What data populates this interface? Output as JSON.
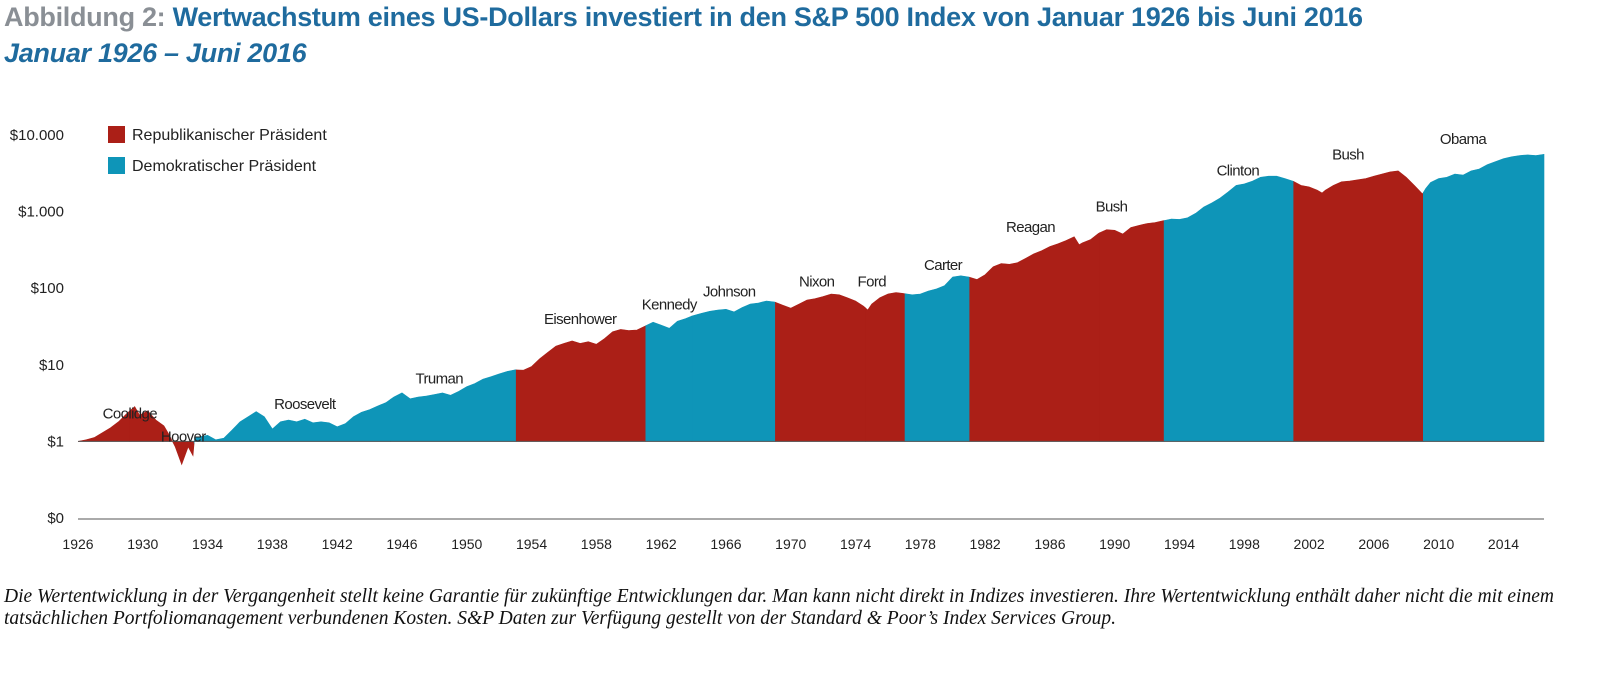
{
  "header": {
    "prefix": "Abbildung 2:",
    "title": "Wertwachstum eines US-Dollars investiert in den S&P 500 Index von Januar 1926 bis Juni 2016",
    "subtitle": "Januar 1926 – Juni 2016"
  },
  "footnote": "Die Wertentwicklung in der Vergangenheit stellt keine Garantie für zukünftige Entwicklungen dar. Man kann nicht direkt in Indizes investieren. Ihre Wertentwicklung enthält daher nicht die mit einem tatsächlichen Portfoliomanagement verbundenen Kosten. S&P Daten zur Verfügung gestellt von der Standard & Poor’s Index Services Group.",
  "colors": {
    "republican": "#ab1f17",
    "democrat": "#0e95b8",
    "title": "#1f6b9e",
    "title_prefix": "#8a8f95"
  },
  "chart_data": {
    "type": "area",
    "title": "Wertwachstum eines US-Dollars investiert in den S&P 500 Index von Januar 1926 bis Juni 2016",
    "subtitle": "Januar 1926 – Juni 2016",
    "xlabel": "",
    "ylabel": "",
    "y_scale": "log",
    "xlim": [
      1926,
      2016.5
    ],
    "ylim": [
      0.1,
      10000
    ],
    "baseline": 1,
    "y_ticks": [
      {
        "value": 0.1,
        "label": "$0"
      },
      {
        "value": 1,
        "label": "$1"
      },
      {
        "value": 10,
        "label": "$10"
      },
      {
        "value": 100,
        "label": "$100"
      },
      {
        "value": 1000,
        "label": "$1.000"
      },
      {
        "value": 10000,
        "label": "$10.000"
      }
    ],
    "x_ticks": [
      "1926",
      "1930",
      "1934",
      "1938",
      "1942",
      "1946",
      "1950",
      "1954",
      "1958",
      "1962",
      "1966",
      "1970",
      "1974",
      "1978",
      "1982",
      "1986",
      "1990",
      "1994",
      "1998",
      "2002",
      "2006",
      "2010",
      "2014"
    ],
    "legend": {
      "position": "top-left",
      "entries": [
        {
          "label": "Republikanischer Präsident",
          "party": "republican"
        },
        {
          "label": "Demokratischer Präsident",
          "party": "democrat"
        }
      ]
    },
    "grid": false,
    "series": [
      {
        "x": 1926.0,
        "y": 1.0
      },
      {
        "x": 1926.5,
        "y": 1.05
      },
      {
        "x": 1927.0,
        "y": 1.12
      },
      {
        "x": 1927.5,
        "y": 1.3
      },
      {
        "x": 1928.0,
        "y": 1.5
      },
      {
        "x": 1928.5,
        "y": 1.8
      },
      {
        "x": 1929.0,
        "y": 2.3
      },
      {
        "x": 1929.5,
        "y": 2.85
      },
      {
        "x": 1929.8,
        "y": 2.2
      },
      {
        "x": 1930.3,
        "y": 2.5
      },
      {
        "x": 1930.8,
        "y": 1.9
      },
      {
        "x": 1931.3,
        "y": 1.6
      },
      {
        "x": 1931.6,
        "y": 1.25
      },
      {
        "x": 1932.0,
        "y": 0.85
      },
      {
        "x": 1932.4,
        "y": 0.5
      },
      {
        "x": 1932.8,
        "y": 0.85
      },
      {
        "x": 1933.1,
        "y": 0.65
      },
      {
        "x": 1933.2,
        "y": 1.1
      },
      {
        "x": 1933.5,
        "y": 1.15
      },
      {
        "x": 1934.0,
        "y": 1.2
      },
      {
        "x": 1934.5,
        "y": 1.05
      },
      {
        "x": 1935.0,
        "y": 1.1
      },
      {
        "x": 1935.5,
        "y": 1.4
      },
      {
        "x": 1936.0,
        "y": 1.8
      },
      {
        "x": 1936.5,
        "y": 2.1
      },
      {
        "x": 1937.0,
        "y": 2.45
      },
      {
        "x": 1937.5,
        "y": 2.1
      },
      {
        "x": 1938.0,
        "y": 1.45
      },
      {
        "x": 1938.5,
        "y": 1.8
      },
      {
        "x": 1939.0,
        "y": 1.9
      },
      {
        "x": 1939.5,
        "y": 1.8
      },
      {
        "x": 1940.0,
        "y": 1.95
      },
      {
        "x": 1940.5,
        "y": 1.75
      },
      {
        "x": 1941.0,
        "y": 1.8
      },
      {
        "x": 1941.5,
        "y": 1.75
      },
      {
        "x": 1942.0,
        "y": 1.55
      },
      {
        "x": 1942.5,
        "y": 1.7
      },
      {
        "x": 1943.0,
        "y": 2.1
      },
      {
        "x": 1943.5,
        "y": 2.4
      },
      {
        "x": 1944.0,
        "y": 2.6
      },
      {
        "x": 1944.5,
        "y": 2.9
      },
      {
        "x": 1945.0,
        "y": 3.2
      },
      {
        "x": 1945.5,
        "y": 3.8
      },
      {
        "x": 1946.0,
        "y": 4.3
      },
      {
        "x": 1946.5,
        "y": 3.6
      },
      {
        "x": 1947.0,
        "y": 3.8
      },
      {
        "x": 1947.5,
        "y": 3.9
      },
      {
        "x": 1948.0,
        "y": 4.1
      },
      {
        "x": 1948.5,
        "y": 4.3
      },
      {
        "x": 1949.0,
        "y": 4.0
      },
      {
        "x": 1949.5,
        "y": 4.5
      },
      {
        "x": 1950.0,
        "y": 5.2
      },
      {
        "x": 1950.5,
        "y": 5.7
      },
      {
        "x": 1951.0,
        "y": 6.5
      },
      {
        "x": 1951.5,
        "y": 7.0
      },
      {
        "x": 1952.0,
        "y": 7.6
      },
      {
        "x": 1952.5,
        "y": 8.2
      },
      {
        "x": 1953.0,
        "y": 8.6
      },
      {
        "x": 1953.5,
        "y": 8.5
      },
      {
        "x": 1954.0,
        "y": 9.5
      },
      {
        "x": 1954.5,
        "y": 12.0
      },
      {
        "x": 1955.0,
        "y": 14.5
      },
      {
        "x": 1955.5,
        "y": 17.5
      },
      {
        "x": 1956.0,
        "y": 19.0
      },
      {
        "x": 1956.5,
        "y": 20.5
      },
      {
        "x": 1957.0,
        "y": 19.0
      },
      {
        "x": 1957.5,
        "y": 20.0
      },
      {
        "x": 1958.0,
        "y": 18.5
      },
      {
        "x": 1958.5,
        "y": 22.0
      },
      {
        "x": 1959.0,
        "y": 27.0
      },
      {
        "x": 1959.5,
        "y": 29.0
      },
      {
        "x": 1960.0,
        "y": 28.0
      },
      {
        "x": 1960.5,
        "y": 28.5
      },
      {
        "x": 1961.0,
        "y": 32.0
      },
      {
        "x": 1961.5,
        "y": 36.0
      },
      {
        "x": 1962.0,
        "y": 33.0
      },
      {
        "x": 1962.5,
        "y": 30.0
      },
      {
        "x": 1963.0,
        "y": 37.0
      },
      {
        "x": 1963.5,
        "y": 40.0
      },
      {
        "x": 1964.0,
        "y": 44.0
      },
      {
        "x": 1964.5,
        "y": 47.0
      },
      {
        "x": 1965.0,
        "y": 50.0
      },
      {
        "x": 1965.5,
        "y": 52.0
      },
      {
        "x": 1966.0,
        "y": 53.0
      },
      {
        "x": 1966.5,
        "y": 49.0
      },
      {
        "x": 1967.0,
        "y": 56.0
      },
      {
        "x": 1967.5,
        "y": 62.0
      },
      {
        "x": 1968.0,
        "y": 64.0
      },
      {
        "x": 1968.5,
        "y": 68.0
      },
      {
        "x": 1969.0,
        "y": 66.0
      },
      {
        "x": 1969.5,
        "y": 60.0
      },
      {
        "x": 1970.0,
        "y": 55.0
      },
      {
        "x": 1970.5,
        "y": 62.0
      },
      {
        "x": 1971.0,
        "y": 70.0
      },
      {
        "x": 1971.5,
        "y": 73.0
      },
      {
        "x": 1972.0,
        "y": 78.0
      },
      {
        "x": 1972.5,
        "y": 84.0
      },
      {
        "x": 1973.0,
        "y": 82.0
      },
      {
        "x": 1973.5,
        "y": 75.0
      },
      {
        "x": 1974.0,
        "y": 68.0
      },
      {
        "x": 1974.5,
        "y": 58.0
      },
      {
        "x": 1974.75,
        "y": 52.0
      },
      {
        "x": 1975.0,
        "y": 62.0
      },
      {
        "x": 1975.5,
        "y": 75.0
      },
      {
        "x": 1976.0,
        "y": 84.0
      },
      {
        "x": 1976.5,
        "y": 88.0
      },
      {
        "x": 1977.0,
        "y": 85.0
      },
      {
        "x": 1977.5,
        "y": 82.0
      },
      {
        "x": 1978.0,
        "y": 84.0
      },
      {
        "x": 1978.5,
        "y": 92.0
      },
      {
        "x": 1979.0,
        "y": 98.0
      },
      {
        "x": 1979.5,
        "y": 108.0
      },
      {
        "x": 1980.0,
        "y": 140.0
      },
      {
        "x": 1980.5,
        "y": 145.0
      },
      {
        "x": 1981.0,
        "y": 140.0
      },
      {
        "x": 1981.5,
        "y": 130.0
      },
      {
        "x": 1982.0,
        "y": 150.0
      },
      {
        "x": 1982.5,
        "y": 190.0
      },
      {
        "x": 1983.0,
        "y": 210.0
      },
      {
        "x": 1983.5,
        "y": 205.0
      },
      {
        "x": 1984.0,
        "y": 215.0
      },
      {
        "x": 1984.5,
        "y": 245.0
      },
      {
        "x": 1985.0,
        "y": 280.0
      },
      {
        "x": 1985.5,
        "y": 310.0
      },
      {
        "x": 1986.0,
        "y": 350.0
      },
      {
        "x": 1986.5,
        "y": 380.0
      },
      {
        "x": 1987.0,
        "y": 420.0
      },
      {
        "x": 1987.5,
        "y": 470.0
      },
      {
        "x": 1987.8,
        "y": 370.0
      },
      {
        "x": 1988.0,
        "y": 390.0
      },
      {
        "x": 1988.5,
        "y": 430.0
      },
      {
        "x": 1989.0,
        "y": 520.0
      },
      {
        "x": 1989.5,
        "y": 580.0
      },
      {
        "x": 1990.0,
        "y": 570.0
      },
      {
        "x": 1990.5,
        "y": 510.0
      },
      {
        "x": 1991.0,
        "y": 620.0
      },
      {
        "x": 1991.5,
        "y": 660.0
      },
      {
        "x": 1992.0,
        "y": 700.0
      },
      {
        "x": 1992.5,
        "y": 720.0
      },
      {
        "x": 1993.0,
        "y": 760.0
      },
      {
        "x": 1993.5,
        "y": 800.0
      },
      {
        "x": 1994.0,
        "y": 790.0
      },
      {
        "x": 1994.5,
        "y": 830.0
      },
      {
        "x": 1995.0,
        "y": 950.0
      },
      {
        "x": 1995.5,
        "y": 1150.0
      },
      {
        "x": 1996.0,
        "y": 1300.0
      },
      {
        "x": 1996.5,
        "y": 1500.0
      },
      {
        "x": 1997.0,
        "y": 1800.0
      },
      {
        "x": 1997.5,
        "y": 2200.0
      },
      {
        "x": 1998.0,
        "y": 2300.0
      },
      {
        "x": 1998.5,
        "y": 2500.0
      },
      {
        "x": 1999.0,
        "y": 2800.0
      },
      {
        "x": 1999.5,
        "y": 2900.0
      },
      {
        "x": 2000.0,
        "y": 2900.0
      },
      {
        "x": 2000.5,
        "y": 2700.0
      },
      {
        "x": 2001.0,
        "y": 2500.0
      },
      {
        "x": 2001.5,
        "y": 2200.0
      },
      {
        "x": 2002.0,
        "y": 2100.0
      },
      {
        "x": 2002.5,
        "y": 1900.0
      },
      {
        "x": 2002.8,
        "y": 1750.0
      },
      {
        "x": 2003.0,
        "y": 1900.0
      },
      {
        "x": 2003.5,
        "y": 2200.0
      },
      {
        "x": 2004.0,
        "y": 2450.0
      },
      {
        "x": 2004.5,
        "y": 2500.0
      },
      {
        "x": 2005.0,
        "y": 2600.0
      },
      {
        "x": 2005.5,
        "y": 2700.0
      },
      {
        "x": 2006.0,
        "y": 2900.0
      },
      {
        "x": 2006.5,
        "y": 3100.0
      },
      {
        "x": 2007.0,
        "y": 3300.0
      },
      {
        "x": 2007.5,
        "y": 3400.0
      },
      {
        "x": 2008.0,
        "y": 2800.0
      },
      {
        "x": 2008.5,
        "y": 2200.0
      },
      {
        "x": 2009.0,
        "y": 1700.0
      },
      {
        "x": 2009.2,
        "y": 2000.0
      },
      {
        "x": 2009.5,
        "y": 2400.0
      },
      {
        "x": 2010.0,
        "y": 2700.0
      },
      {
        "x": 2010.5,
        "y": 2800.0
      },
      {
        "x": 2011.0,
        "y": 3100.0
      },
      {
        "x": 2011.5,
        "y": 3000.0
      },
      {
        "x": 2012.0,
        "y": 3400.0
      },
      {
        "x": 2012.5,
        "y": 3600.0
      },
      {
        "x": 2013.0,
        "y": 4100.0
      },
      {
        "x": 2013.5,
        "y": 4500.0
      },
      {
        "x": 2014.0,
        "y": 4900.0
      },
      {
        "x": 2014.5,
        "y": 5200.0
      },
      {
        "x": 2015.0,
        "y": 5400.0
      },
      {
        "x": 2015.5,
        "y": 5500.0
      },
      {
        "x": 2016.0,
        "y": 5400.0
      },
      {
        "x": 2016.5,
        "y": 5600.0
      }
    ],
    "terms": [
      {
        "label": "Coolidge",
        "party": "republican",
        "start": 1926.0,
        "end": 1929.17,
        "label_x": 1929.2,
        "label_y": 2.0
      },
      {
        "label": "Hoover",
        "party": "republican",
        "start": 1929.17,
        "end": 1933.17,
        "label_x": 1932.5,
        "label_y": 1.0
      },
      {
        "label": "Roosevelt",
        "party": "democrat",
        "start": 1933.17,
        "end": 1945.3,
        "label_x": 1940.0,
        "label_y": 2.65
      },
      {
        "label": "Truman",
        "party": "democrat",
        "start": 1945.3,
        "end": 1953.05,
        "label_x": 1948.3,
        "label_y": 5.7
      },
      {
        "label": "Eisenhower",
        "party": "republican",
        "start": 1953.05,
        "end": 1961.05,
        "label_x": 1957.0,
        "label_y": 34.0
      },
      {
        "label": "Kennedy",
        "party": "democrat",
        "start": 1961.05,
        "end": 1963.9,
        "label_x": 1962.5,
        "label_y": 53.0
      },
      {
        "label": "Johnson",
        "party": "democrat",
        "start": 1963.9,
        "end": 1969.05,
        "label_x": 1966.2,
        "label_y": 78.0
      },
      {
        "label": "Nixon",
        "party": "republican",
        "start": 1969.05,
        "end": 1974.6,
        "label_x": 1971.6,
        "label_y": 105.0
      },
      {
        "label": "Ford",
        "party": "republican",
        "start": 1974.6,
        "end": 1977.05,
        "label_x": 1975.0,
        "label_y": 105.0
      },
      {
        "label": "Carter",
        "party": "democrat",
        "start": 1977.05,
        "end": 1981.05,
        "label_x": 1979.4,
        "label_y": 172.0
      },
      {
        "label": "Reagan",
        "party": "republican",
        "start": 1981.05,
        "end": 1989.05,
        "label_x": 1984.8,
        "label_y": 540.0
      },
      {
        "label": "Bush",
        "party": "republican",
        "start": 1989.05,
        "end": 1993.05,
        "label_x": 1989.8,
        "label_y": 1000.0
      },
      {
        "label": "Clinton",
        "party": "democrat",
        "start": 1993.05,
        "end": 2001.05,
        "label_x": 1997.6,
        "label_y": 2950.0
      },
      {
        "label": "Bush",
        "party": "republican",
        "start": 2001.05,
        "end": 2009.05,
        "label_x": 2004.4,
        "label_y": 4800.0
      },
      {
        "label": "Obama",
        "party": "democrat",
        "start": 2009.05,
        "end": 2016.5,
        "label_x": 2011.5,
        "label_y": 7600.0
      }
    ]
  }
}
